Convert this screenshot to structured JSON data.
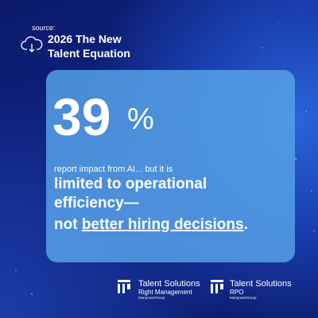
{
  "header": {
    "source_label": "source:",
    "title_lines": [
      "2026 The New",
      "Talent Equation"
    ]
  },
  "card": {
    "figure": "39",
    "figure_unit": "%",
    "lead": "report impact from AI... but it is",
    "emphasis_lines": [
      "limited to operational",
      "efficiency—"
    ],
    "last_line": {
      "start": "not ",
      "underlined": "better hiring decisions",
      "end": "."
    }
  },
  "logos": [
    {
      "name": "Talent Solutions",
      "sub": "Right Management",
      "parent": "ManpowerGroup"
    },
    {
      "name": "Talent Solutions",
      "sub": "RPO",
      "parent": "ManpowerGroup"
    }
  ]
}
